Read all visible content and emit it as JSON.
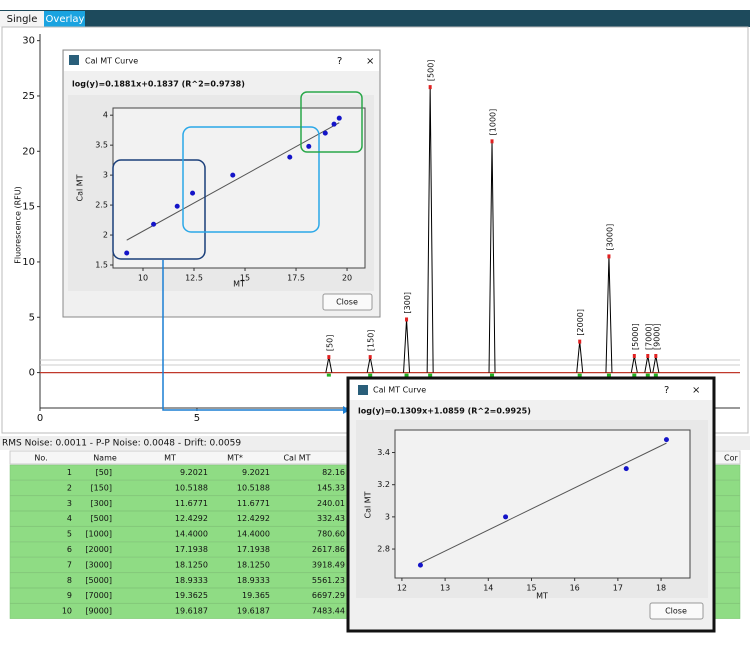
{
  "tabs": [
    "Single",
    "Overlay"
  ],
  "chart_data": [
    {
      "type": "line",
      "y_label": "Fluorescence (RFU)",
      "color": "#000000",
      "xlim": [
        0,
        22.3
      ],
      "ylim": [
        -3.2,
        30.6
      ],
      "xticks": [
        0,
        5
      ],
      "yticks": [
        0,
        5,
        10,
        15,
        20,
        25,
        30
      ],
      "labels": [
        "[50]",
        "[150]",
        "[300]",
        "[500]",
        "[1000]",
        "[2000]",
        "[3000]",
        "[5000]",
        "[7000]",
        "[9000]"
      ],
      "x": [
        9.2021,
        10.5188,
        11.6771,
        12.4292,
        14.4,
        17.1938,
        18.125,
        18.9333,
        19.3625,
        19.6187
      ],
      "values": [
        1.4,
        1.4,
        4.8,
        25.8,
        20.9,
        2.8,
        10.5,
        1.5,
        1.5,
        1.5
      ]
    },
    {
      "type": "scatter",
      "window_title": "Cal MT Curve",
      "help": "?",
      "close_icon": "×",
      "equation": "log(y)=0.1881x+0.1837 (R^2=0.9738)",
      "fit": {
        "slope": 0.1881,
        "intercept": 0.1837
      },
      "x_label": "MT",
      "y_label": "Cal MT",
      "color": "#1414c8",
      "button": "Close",
      "xlim": [
        8.53,
        20.88
      ],
      "ylim": [
        1.45,
        4.12
      ],
      "xticks": [
        10,
        12.5,
        15,
        17.5,
        20
      ],
      "yticks": [
        1.5,
        2,
        2.5,
        3,
        3.5,
        4
      ],
      "x": [
        9.2021,
        10.5188,
        11.6771,
        12.4292,
        14.4,
        17.1938,
        18.125,
        18.9333,
        19.3625,
        19.6187
      ],
      "values": [
        1.7,
        2.18,
        2.48,
        2.7,
        3.0,
        3.3,
        3.48,
        3.7,
        3.85,
        3.95
      ]
    },
    {
      "type": "scatter",
      "window_title": "Cal MT Curve",
      "help": "?",
      "close_icon": "×",
      "equation": "log(y)=0.1309x+1.0859 (R^2=0.9925)",
      "fit": {
        "slope": 0.1309,
        "intercept": 1.0859
      },
      "x_label": "MT",
      "y_label": "Cal MT",
      "color": "#1414c8",
      "button": "Close",
      "xlim": [
        11.84,
        18.67
      ],
      "ylim": [
        2.62,
        3.54
      ],
      "xticks": [
        12,
        13,
        14,
        15,
        16,
        17,
        18
      ],
      "yticks": [
        2.8,
        3,
        3.2,
        3.4
      ],
      "x": [
        12.4292,
        14.4,
        17.1938,
        18.125
      ],
      "values": [
        2.7,
        3.0,
        3.3,
        3.48
      ]
    }
  ],
  "status": "RMS Noise: 0.0011 - P-P Noise: 0.0048 - Drift: 0.0059",
  "table": {
    "columns": [
      "No.",
      "Name",
      "MT",
      "MT*",
      "Cal MT"
    ],
    "extra_column": "Cor",
    "rows": [
      [
        "1",
        "[50]",
        "9.2021",
        "9.2021",
        "82.16"
      ],
      [
        "2",
        "[150]",
        "10.5188",
        "10.5188",
        "145.33"
      ],
      [
        "3",
        "[300]",
        "11.6771",
        "11.6771",
        "240.01"
      ],
      [
        "4",
        "[500]",
        "12.4292",
        "12.4292",
        "332.43"
      ],
      [
        "5",
        "[1000]",
        "14.4000",
        "14.4000",
        "780.60"
      ],
      [
        "6",
        "[2000]",
        "17.1938",
        "17.1938",
        "2617.86"
      ],
      [
        "7",
        "[3000]",
        "18.1250",
        "18.1250",
        "3918.49"
      ],
      [
        "8",
        "[5000]",
        "18.9333",
        "18.9333",
        "5561.23"
      ],
      [
        "9",
        "[7000]",
        "19.3625",
        "19.365",
        "6697.29"
      ],
      [
        "10",
        "[9000]",
        "19.6187",
        "19.6187",
        "7483.44"
      ]
    ]
  }
}
